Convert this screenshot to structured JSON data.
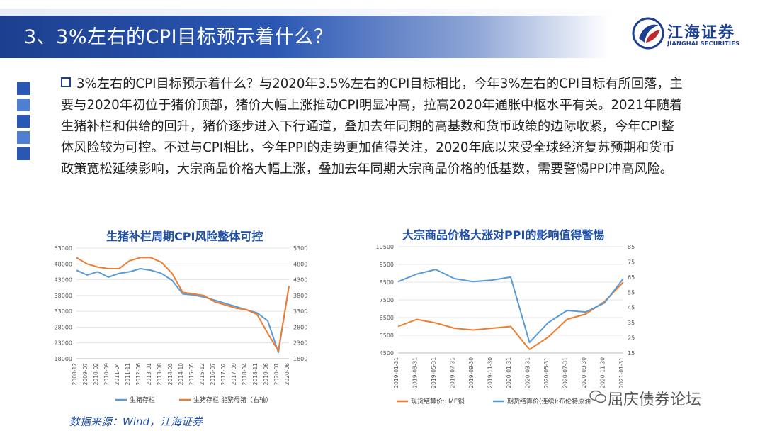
{
  "header": {
    "title": "3、3%左右的CPI目标预示着什么？"
  },
  "logo": {
    "cn": "江海证券",
    "en": "JIANGHAI SECURITIES"
  },
  "body_text": "3%左右的CPI目标预示着什么？与2020年3.5%左右的CPI目标相比，今年3%左右的CPI目标有所回落，主要与2020年初位于猪价顶部，猪价大幅上涨推动CPI明显冲高，拉高2020年通胀中枢水平有关。2021年随着生猪补栏和供给的回升，猪价逐步进入下行通道，叠加去年同期的高基数和货币政策的边际收紧，今年CPI整体风险较为可控。不过与CPI相比，今年PPI的走势更加值得关注，2020年底以来受全球经济复苏预期和货币政策宽松延续影响，大宗商品价格大幅上涨，叠加去年同期大宗商品价格的低基数，需要警惕PPI冲高风险。",
  "colors": {
    "blue_series": "#5b9bd5",
    "orange_series": "#ed7d31",
    "accent": "#1d3f8f"
  },
  "chart_data": [
    {
      "type": "line",
      "title": "生猪补栏周期CPI风险整体可控",
      "categories": [
        "2008-12",
        "2009-07",
        "2010-02",
        "2010-09",
        "2011-04",
        "2011-11",
        "2012-06",
        "2013-01",
        "2013-08",
        "2014-03",
        "2014-10",
        "2015-05",
        "2015-12",
        "2016-07",
        "2017-02",
        "2017-09",
        "2018-04",
        "2018-11",
        "2019-06",
        "2020-01",
        "2020-08"
      ],
      "y_ticks_left": [
        "53000",
        "48000",
        "43000",
        "38000",
        "33000",
        "28000",
        "23000",
        "18000"
      ],
      "y_ticks_right": [
        "5300",
        "4800",
        "4300",
        "3800",
        "3300",
        "2800",
        "2300",
        "1800"
      ],
      "ylim": [
        18000,
        53000
      ],
      "y2lim": [
        1800,
        5300
      ],
      "series": [
        {
          "name": "生猪存栏",
          "axis": "left",
          "color": "#5b9bd5",
          "values": [
            46000,
            44500,
            45500,
            43800,
            45000,
            45500,
            46500,
            46000,
            45000,
            42800,
            38500,
            38200,
            37500,
            36500,
            35500,
            34500,
            33500,
            32500,
            30000,
            20000,
            41000
          ]
        },
        {
          "name": "生猪存栏:能繁母猪（右轴）",
          "axis": "right",
          "color": "#ed7d31",
          "values": [
            5000,
            4800,
            4700,
            4650,
            4650,
            4900,
            5000,
            5000,
            4850,
            4500,
            3900,
            3850,
            3800,
            3600,
            3500,
            3400,
            3350,
            3200,
            2600,
            2050,
            4100
          ]
        }
      ]
    },
    {
      "type": "line",
      "title": "大宗商品价格大涨对PPI的影响值得警惕",
      "categories": [
        "2019-01-31",
        "2019-03-31",
        "2019-05-31",
        "2019-07-31",
        "2019-09-30",
        "2019-11-30",
        "2020-01-31",
        "2020-03-31",
        "2020-05-31",
        "2020-07-31",
        "2020-09-30",
        "2020-11-30",
        "2021-01-31"
      ],
      "y_ticks_left": [
        "10500",
        "9500",
        "8500",
        "7500",
        "6500",
        "5500",
        "4500"
      ],
      "y_ticks_right": [
        "85",
        "75",
        "65",
        "55",
        "45",
        "35",
        "25",
        "15"
      ],
      "ylim": [
        4500,
        10500
      ],
      "y2lim": [
        15,
        85
      ],
      "series": [
        {
          "name": "现货结算价:LME铜",
          "axis": "left",
          "color": "#ed7d31",
          "values": [
            6000,
            6400,
            6200,
            5900,
            5800,
            5900,
            6000,
            4700,
            5400,
            6400,
            6700,
            7400,
            8500
          ]
        },
        {
          "name": "期货结算价(连续):布伦特原油",
          "axis": "right",
          "color": "#5b9bd5",
          "values": [
            62,
            67,
            70,
            64,
            62,
            63,
            65,
            22,
            35,
            43,
            42,
            48,
            64
          ]
        }
      ]
    }
  ],
  "source": "数据来源：Wind，江海证券",
  "watermark": "屈庆债券论坛"
}
